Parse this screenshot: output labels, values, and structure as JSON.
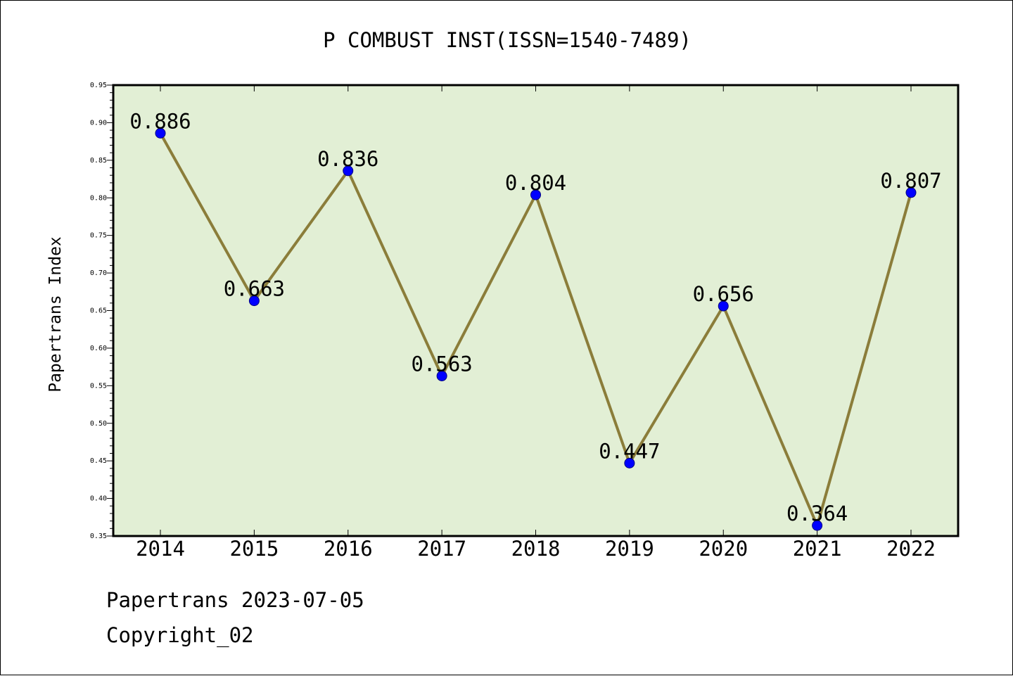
{
  "chart_data": {
    "type": "line",
    "title": "P COMBUST INST(ISSN=1540-7489)",
    "xlabel": "",
    "ylabel": "Papertrans Index",
    "categories": [
      "2014",
      "2015",
      "2016",
      "2017",
      "2018",
      "2019",
      "2020",
      "2021",
      "2022"
    ],
    "series": [
      {
        "values": [
          0.886,
          0.663,
          0.836,
          0.563,
          0.804,
          0.447,
          0.656,
          0.364,
          0.807
        ]
      }
    ],
    "data_labels": [
      "0.886",
      "0.663",
      "0.836",
      "0.563",
      "0.804",
      "0.447",
      "0.656",
      "0.364",
      "0.807"
    ],
    "ylim": [
      0.35,
      0.95
    ],
    "yticks": [
      "0.35",
      "0.40",
      "0.45",
      "0.50",
      "0.55",
      "0.60",
      "0.65",
      "0.70",
      "0.75",
      "0.80",
      "0.85",
      "0.90",
      "0.95"
    ],
    "grid": false,
    "legend": "none",
    "colors": {
      "line": "#8b7d3a",
      "marker": "#0000ff",
      "plot_background": "#e2efd5"
    }
  },
  "footer": {
    "line1": "Papertrans 2023-07-05",
    "line2": "Copyright_02"
  }
}
